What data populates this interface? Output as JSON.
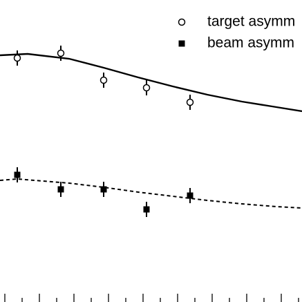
{
  "chart_data": {
    "type": "scatter",
    "xlim": [
      -0.14,
      8.6
    ],
    "ylim": [
      0,
      4.37
    ],
    "xticks": [
      0,
      0.5,
      1,
      1.5,
      2,
      2.5,
      3,
      3.5,
      4,
      4.5,
      5,
      5.5,
      6,
      6.5,
      7,
      7.5,
      8,
      8.5
    ],
    "series": [
      {
        "name": "target asymm",
        "marker": "open-circle",
        "color": "#000000",
        "x": [
          0.36,
          1.62,
          2.86,
          4.1,
          5.36
        ],
        "values": [
          3.53,
          3.6,
          3.21,
          3.1,
          2.89
        ],
        "errors": [
          0.11,
          0.11,
          0.11,
          0.11,
          0.11
        ]
      },
      {
        "name": "beam asymm",
        "marker": "filled-square",
        "color": "#000000",
        "x": [
          0.36,
          1.62,
          2.86,
          4.1,
          5.36
        ],
        "values": [
          1.84,
          1.63,
          1.63,
          1.34,
          1.54
        ],
        "errors": [
          0.11,
          0.11,
          0.11,
          0.11,
          0.11
        ]
      }
    ],
    "curves": [
      {
        "style": "solid",
        "color": "#000000",
        "x": [
          -0.14,
          0.66,
          1.86,
          2.86,
          3.86,
          4.86,
          5.86,
          6.86,
          7.86,
          8.6
        ],
        "values": [
          3.57,
          3.59,
          3.52,
          3.39,
          3.25,
          3.12,
          3.0,
          2.9,
          2.82,
          2.76
        ]
      },
      {
        "style": "dashed",
        "color": "#000000",
        "x": [
          -0.14,
          0.36,
          1.86,
          2.86,
          3.86,
          4.86,
          5.86,
          6.86,
          7.86,
          8.6
        ],
        "values": [
          1.76,
          1.78,
          1.72,
          1.66,
          1.59,
          1.53,
          1.47,
          1.42,
          1.38,
          1.36
        ]
      }
    ]
  }
}
